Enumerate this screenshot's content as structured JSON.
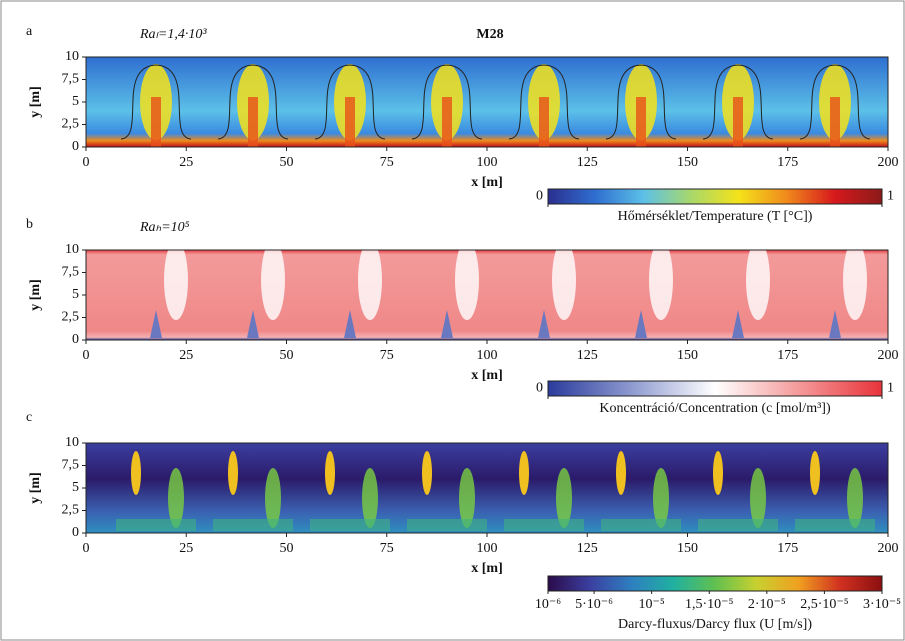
{
  "chart_data": [
    {
      "type": "heatmap",
      "panel": "a",
      "title": "M28",
      "annotation": "Raₗ=1,4·10³",
      "x_label": "x [m]",
      "y_label": "y [m]",
      "xlim": [
        0,
        200
      ],
      "ylim": [
        0,
        10
      ],
      "xticks": [
        0,
        25,
        50,
        75,
        100,
        125,
        150,
        175,
        200
      ],
      "yticks": [
        0,
        {
          "value": 2.5,
          "label": "2,5"
        },
        5,
        {
          "value": 7.5,
          "label": "7,5"
        },
        10
      ],
      "colorbar": {
        "label": "Hőmérséklet/Temperature (T [°C])",
        "clim": [
          0,
          1
        ],
        "ticks": [
          0,
          1
        ],
        "colormap": [
          "#2b2f8f",
          "#2f6fd0",
          "#5cc0e8",
          "#a8d86a",
          "#f4e21a",
          "#f08a1c",
          "#d7191c",
          "#8b1a1a"
        ]
      }
    },
    {
      "type": "heatmap",
      "panel": "b",
      "annotation": "Raₕ=10⁵",
      "x_label": "x [m]",
      "y_label": "y [m]",
      "xlim": [
        0,
        200
      ],
      "ylim": [
        0,
        10
      ],
      "xticks": [
        0,
        25,
        50,
        75,
        100,
        125,
        150,
        175,
        200
      ],
      "yticks": [
        0,
        {
          "value": 2.5,
          "label": "2,5"
        },
        5,
        {
          "value": 7.5,
          "label": "7,5"
        },
        10
      ],
      "colorbar": {
        "label": "Koncentráció/Concentration (c [mol/m³])",
        "clim": [
          0,
          1
        ],
        "ticks": [
          0,
          1
        ],
        "colormap": [
          "#2a3b9c",
          "#8e9ad0",
          "#ffffff",
          "#f49a9a",
          "#e8333a"
        ]
      }
    },
    {
      "type": "heatmap",
      "panel": "c",
      "x_label": "x [m]",
      "y_label": "y [m]",
      "xlim": [
        0,
        200
      ],
      "ylim": [
        0,
        10
      ],
      "xticks": [
        0,
        25,
        50,
        75,
        100,
        125,
        150,
        175,
        200
      ],
      "yticks": [
        0,
        {
          "value": 2.5,
          "label": "2,5"
        },
        5,
        {
          "value": 7.5,
          "label": "7,5"
        },
        10
      ],
      "colorbar": {
        "label": "Darcy-fluxus/Darcy flux (U [m/s])",
        "clim": [
          1e-06,
          3e-05
        ],
        "ticks": [
          {
            "value": 1e-06,
            "label": "10⁻⁶"
          },
          {
            "value": 5e-06,
            "label": "5·10⁻⁶"
          },
          {
            "value": 1e-05,
            "label": "10⁻⁵"
          },
          {
            "value": 1.5e-05,
            "label": "1,5·10⁻⁵"
          },
          {
            "value": 2e-05,
            "label": "2·10⁻⁵"
          },
          {
            "value": 2.5e-05,
            "label": "2,5·10⁻⁵"
          },
          {
            "value": 3e-05,
            "label": "3·10⁻⁵"
          }
        ],
        "colormap": [
          "#2b0b4a",
          "#3b3fa0",
          "#2e7fc0",
          "#20b0a0",
          "#60c050",
          "#c8d030",
          "#f0a020",
          "#d03020",
          "#8b1010"
        ]
      }
    }
  ]
}
